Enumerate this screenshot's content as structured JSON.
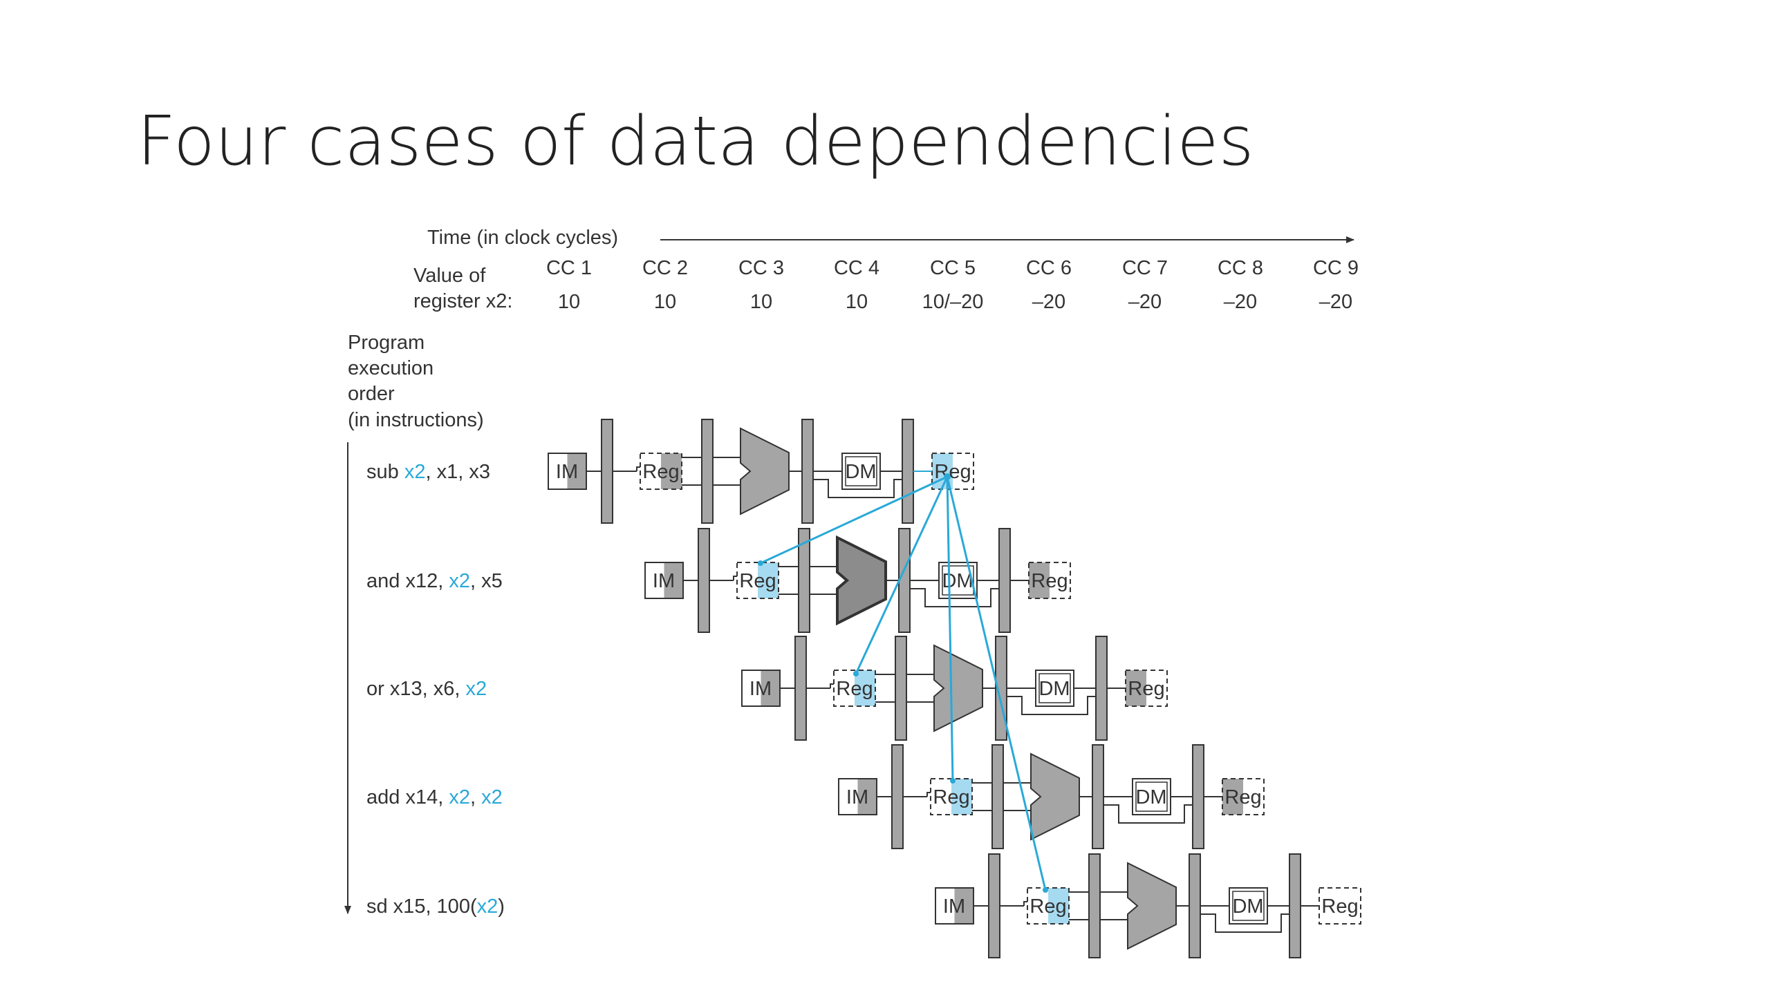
{
  "slide": {
    "title": "Four cases of data dependencies"
  },
  "diagram": {
    "time_label": "Time (in clock cycles)",
    "value_label_line1": "Value of",
    "value_label_line2": "register x2:",
    "cycles": [
      {
        "label": "CC 1",
        "value": "10"
      },
      {
        "label": "CC 2",
        "value": "10"
      },
      {
        "label": "CC 3",
        "value": "10"
      },
      {
        "label": "CC 4",
        "value": "10"
      },
      {
        "label": "CC 5",
        "value": "10/–20"
      },
      {
        "label": "CC 6",
        "value": "–20"
      },
      {
        "label": "CC 7",
        "value": "–20"
      },
      {
        "label": "CC 8",
        "value": "–20"
      },
      {
        "label": "CC 9",
        "value": "–20"
      }
    ],
    "order_label": [
      "Program",
      "execution",
      "order",
      "(in instructions)"
    ],
    "instructions": [
      {
        "parts": [
          {
            "text": "sub ",
            "hl": false
          },
          {
            "text": "x2",
            "hl": true
          },
          {
            "text": ", x1, x3",
            "hl": false
          }
        ]
      },
      {
        "parts": [
          {
            "text": "and x12, ",
            "hl": false
          },
          {
            "text": "x2",
            "hl": true
          },
          {
            "text": ", x5",
            "hl": false
          }
        ]
      },
      {
        "parts": [
          {
            "text": "or x13, x6, ",
            "hl": false
          },
          {
            "text": "x2",
            "hl": true
          }
        ]
      },
      {
        "parts": [
          {
            "text": "add x14, ",
            "hl": false
          },
          {
            "text": "x2",
            "hl": true
          },
          {
            "text": ", ",
            "hl": false
          },
          {
            "text": "x2",
            "hl": true
          }
        ]
      },
      {
        "parts": [
          {
            "text": "sd x15, 100(",
            "hl": false
          },
          {
            "text": "x2",
            "hl": true
          },
          {
            "text": ")",
            "hl": false
          }
        ]
      }
    ],
    "stage_labels": {
      "im": "IM",
      "reg": "Reg",
      "dm": "DM"
    },
    "colors": {
      "highlight": "#29a9d8",
      "highlight_fill": "#a6daf0",
      "stage_gray": "#a5a5a5",
      "dark_gray": "#8c8c8c",
      "line": "#333333"
    }
  }
}
